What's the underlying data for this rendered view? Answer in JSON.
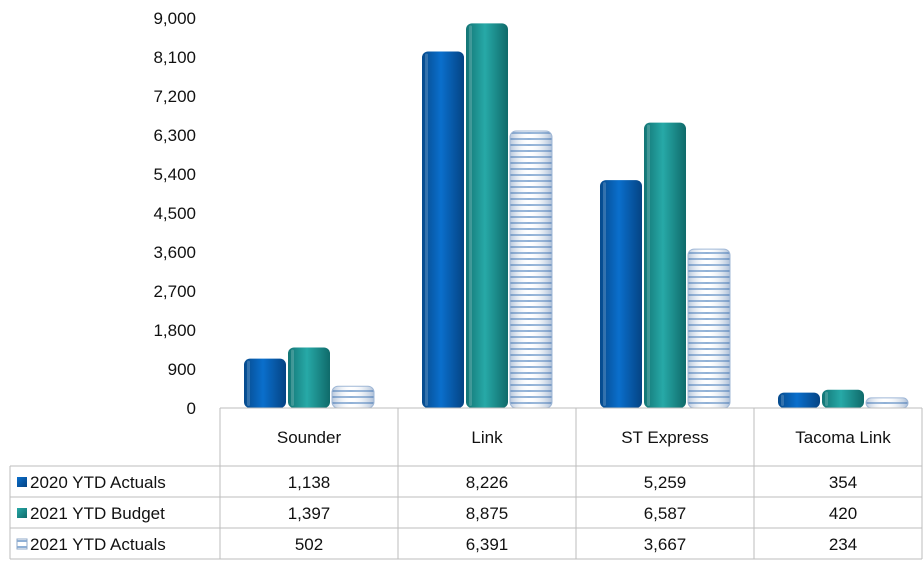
{
  "chart_data": {
    "type": "bar",
    "categories": [
      "Sounder",
      "Link",
      "ST Express",
      "Tacoma Link"
    ],
    "series": [
      {
        "name": "2020 YTD Actuals",
        "values": [
          1138,
          8226,
          5259,
          354
        ],
        "labels": [
          "1,138",
          "8,226",
          "5,259",
          "354"
        ],
        "color": "#0a64b8"
      },
      {
        "name": "2021 YTD Budget",
        "values": [
          1397,
          8875,
          6587,
          420
        ],
        "labels": [
          "1,397",
          "8,875",
          "6,587",
          "420"
        ],
        "color": "#1f9a9a"
      },
      {
        "name": "2021 YTD Actuals",
        "values": [
          502,
          6391,
          3667,
          234
        ],
        "labels": [
          "502",
          "6,391",
          "3,667",
          "234"
        ],
        "color": "#c6d6ea",
        "pattern": "horizontal-stripes"
      }
    ],
    "y_ticks": [
      "0",
      "900",
      "1,800",
      "2,700",
      "3,600",
      "4,500",
      "5,400",
      "6,300",
      "7,200",
      "8,100",
      "9,000"
    ],
    "ylim": [
      0,
      9000
    ],
    "grid": false,
    "legend": "data-table"
  }
}
